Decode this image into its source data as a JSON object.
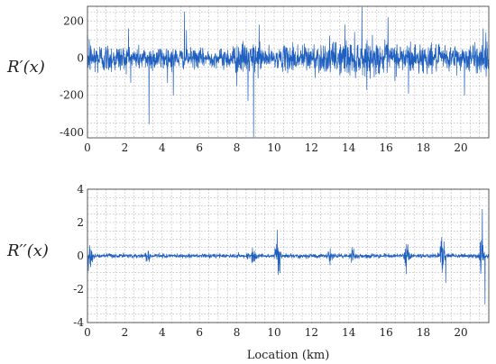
{
  "chart_data": [
    {
      "type": "line",
      "ylabel": "R′(x)",
      "xlabel": "",
      "xlim": [
        0,
        21.5
      ],
      "ylim": [
        -430,
        280
      ],
      "xticks": [
        0,
        2,
        4,
        6,
        8,
        10,
        12,
        14,
        16,
        18,
        20
      ],
      "xtick_labels": [
        "0",
        "2",
        "4",
        "6",
        "8",
        "10",
        "12",
        "14",
        "16",
        "18",
        "20"
      ],
      "yticks": [
        200,
        0,
        -200,
        -400
      ],
      "ytick_labels": [
        "200",
        "0",
        "-200",
        "-400"
      ],
      "grid": true,
      "series_color": "#1f5fbf",
      "baseline_std": 28,
      "noise_envelope": [
        {
          "x": 0,
          "std": 45
        },
        {
          "x": 1,
          "std": 40
        },
        {
          "x": 2,
          "std": 34
        },
        {
          "x": 3,
          "std": 30
        },
        {
          "x": 4,
          "std": 34
        },
        {
          "x": 5,
          "std": 26
        },
        {
          "x": 6,
          "std": 24
        },
        {
          "x": 7,
          "std": 22
        },
        {
          "x": 8,
          "std": 38
        },
        {
          "x": 9,
          "std": 40
        },
        {
          "x": 10,
          "std": 20
        },
        {
          "x": 11,
          "std": 40
        },
        {
          "x": 12,
          "std": 38
        },
        {
          "x": 13,
          "std": 40
        },
        {
          "x": 14,
          "std": 48
        },
        {
          "x": 15,
          "std": 44
        },
        {
          "x": 16,
          "std": 40
        },
        {
          "x": 17,
          "std": 42
        },
        {
          "x": 18,
          "std": 38
        },
        {
          "x": 19,
          "std": 30
        },
        {
          "x": 20,
          "std": 38
        },
        {
          "x": 21.5,
          "std": 40
        }
      ],
      "spikes": [
        {
          "x": 0.1,
          "y": 100
        },
        {
          "x": 2.2,
          "y": 160
        },
        {
          "x": 3.3,
          "y": -355
        },
        {
          "x": 4.6,
          "y": -200
        },
        {
          "x": 5.2,
          "y": 250
        },
        {
          "x": 5.3,
          "y": 150
        },
        {
          "x": 8.0,
          "y": -150
        },
        {
          "x": 8.6,
          "y": -230
        },
        {
          "x": 8.9,
          "y": -425
        },
        {
          "x": 9.2,
          "y": 180
        },
        {
          "x": 13.8,
          "y": 180
        },
        {
          "x": 14.7,
          "y": 275
        },
        {
          "x": 16.1,
          "y": 220
        },
        {
          "x": 17.2,
          "y": -190
        },
        {
          "x": 20.2,
          "y": -200
        },
        {
          "x": 21.2,
          "y": 160
        }
      ]
    },
    {
      "type": "line",
      "ylabel": "R′′(x)",
      "xlabel": "Location (km)",
      "xlim": [
        0,
        21.5
      ],
      "ylim": [
        -4,
        4
      ],
      "xticks": [
        0,
        2,
        4,
        6,
        8,
        10,
        12,
        14,
        16,
        18,
        20
      ],
      "xtick_labels": [
        "0",
        "2",
        "4",
        "6",
        "8",
        "10",
        "12",
        "14",
        "16",
        "18",
        "20"
      ],
      "yticks": [
        4,
        2,
        0,
        -2,
        -4
      ],
      "ytick_labels": [
        "4",
        "2",
        "0",
        "-2",
        "-4"
      ],
      "grid": true,
      "series_color": "#1f5fbf",
      "baseline_std": 0.06,
      "bursts": [
        {
          "x": 0.15,
          "amp": 0.8
        },
        {
          "x": 3.2,
          "amp": 0.35
        },
        {
          "x": 8.9,
          "amp": 0.4
        },
        {
          "x": 10.2,
          "amp": 1.2
        },
        {
          "x": 13.0,
          "amp": 0.4
        },
        {
          "x": 14.2,
          "amp": 0.5
        },
        {
          "x": 17.1,
          "amp": 0.9
        },
        {
          "x": 19.0,
          "amp": 1.1
        },
        {
          "x": 21.1,
          "amp": 1.0
        }
      ],
      "spikes": [
        {
          "x": 0.05,
          "y": -0.9
        },
        {
          "x": 19.2,
          "y": -1.6
        },
        {
          "x": 21.15,
          "y": 2.8
        },
        {
          "x": 21.3,
          "y": -2.9
        }
      ]
    }
  ]
}
